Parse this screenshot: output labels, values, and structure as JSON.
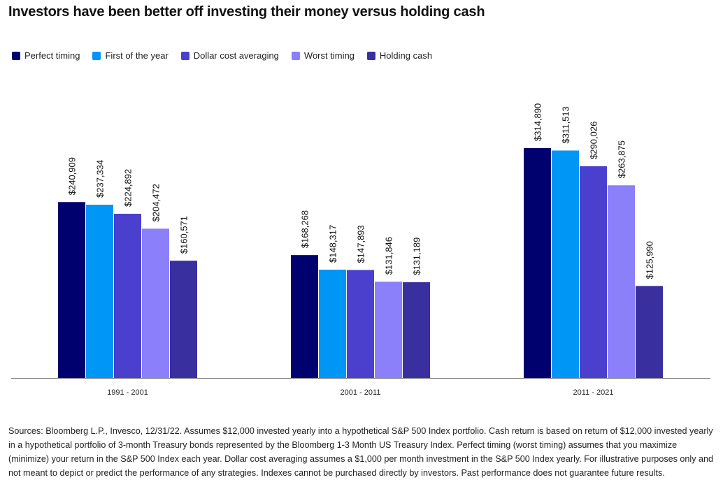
{
  "chart_data": {
    "type": "bar",
    "title": "Investors have been better off investing their money versus holding cash",
    "categories": [
      "1991 - 2001",
      "2001 - 2011",
      "2011 - 2021"
    ],
    "series": [
      {
        "name": "Perfect timing",
        "color": "#00006e",
        "values": [
          240909,
          168268,
          314890
        ],
        "labels": [
          "$240,909",
          "$168,268",
          "$314,890"
        ]
      },
      {
        "name": "First of the year",
        "color": "#0096f5",
        "values": [
          237334,
          148317,
          311513
        ],
        "labels": [
          "$237,334",
          "$148,317",
          "$311,513"
        ]
      },
      {
        "name": "Dollar cost averaging",
        "color": "#4b40cd",
        "values": [
          224892,
          147893,
          290026
        ],
        "labels": [
          "$224,892",
          "$147,893",
          "$290,026"
        ]
      },
      {
        "name": "Worst timing",
        "color": "#8c7ffa",
        "values": [
          204472,
          131846,
          263875
        ],
        "labels": [
          "$204,472",
          "$131,846",
          "$263,875"
        ]
      },
      {
        "name": "Holding cash",
        "color": "#3a2f9e",
        "values": [
          160571,
          131189,
          125990
        ],
        "labels": [
          "$160,571",
          "$131,189",
          "$125,990"
        ]
      }
    ],
    "ylim": [
      0,
      400000
    ],
    "grid": false,
    "legend_position": "top-left",
    "xlabel": "",
    "ylabel": ""
  },
  "footnote": "Sources: Bloomberg L.P., Invesco, 12/31/22. Assumes $12,000 invested yearly into a hypothetical S&P 500 Index portfolio. Cash return is based on return of $12,000 invested yearly in a hypothetical portfolio of 3-month Treasury bonds represented by the Bloomberg 1-3 Month US Treasury Index. Perfect timing (worst timing) assumes that you maximize (minimize) your return in the S&P 500 Index each year. Dollar cost averaging assumes a $1,000 per month investment in the S&P 500 Index yearly. For illustrative purposes only and not meant to depict or predict the performance of any strategies. Indexes cannot be purchased directly by investors. Past performance does not guarantee future results."
}
